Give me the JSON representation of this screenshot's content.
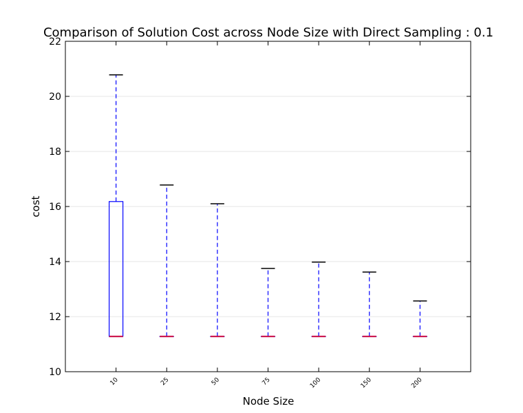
{
  "chart_data": {
    "type": "box",
    "title": "Comparison of Solution Cost across Node Size with Direct Sampling : 0.1",
    "xlabel": "Node Size",
    "ylabel": "cost",
    "ylim": [
      10,
      22
    ],
    "yticks": [
      10,
      12,
      14,
      16,
      18,
      20,
      22
    ],
    "grid": "horizontal",
    "colors": {
      "box": "#0000ff",
      "whisker": "#0000ff",
      "cap": "#000000",
      "median": "#c8003c",
      "grid": "#e6e6e6"
    },
    "categories": [
      "10",
      "25",
      "50",
      "75",
      "100",
      "150",
      "200"
    ],
    "boxes": [
      {
        "q1": 11.28,
        "median": 11.28,
        "q3": 16.18,
        "whislo": 11.28,
        "whishi": 20.78
      },
      {
        "q1": 11.28,
        "median": 11.28,
        "q3": 11.28,
        "whislo": 11.28,
        "whishi": 16.78
      },
      {
        "q1": 11.28,
        "median": 11.28,
        "q3": 11.28,
        "whislo": 11.28,
        "whishi": 16.1
      },
      {
        "q1": 11.28,
        "median": 11.28,
        "q3": 11.28,
        "whislo": 11.28,
        "whishi": 13.75
      },
      {
        "q1": 11.28,
        "median": 11.28,
        "q3": 11.28,
        "whislo": 11.28,
        "whishi": 13.98
      },
      {
        "q1": 11.28,
        "median": 11.28,
        "q3": 11.28,
        "whislo": 11.28,
        "whishi": 13.62
      },
      {
        "q1": 11.28,
        "median": 11.28,
        "q3": 11.28,
        "whislo": 11.28,
        "whishi": 12.57
      }
    ]
  }
}
